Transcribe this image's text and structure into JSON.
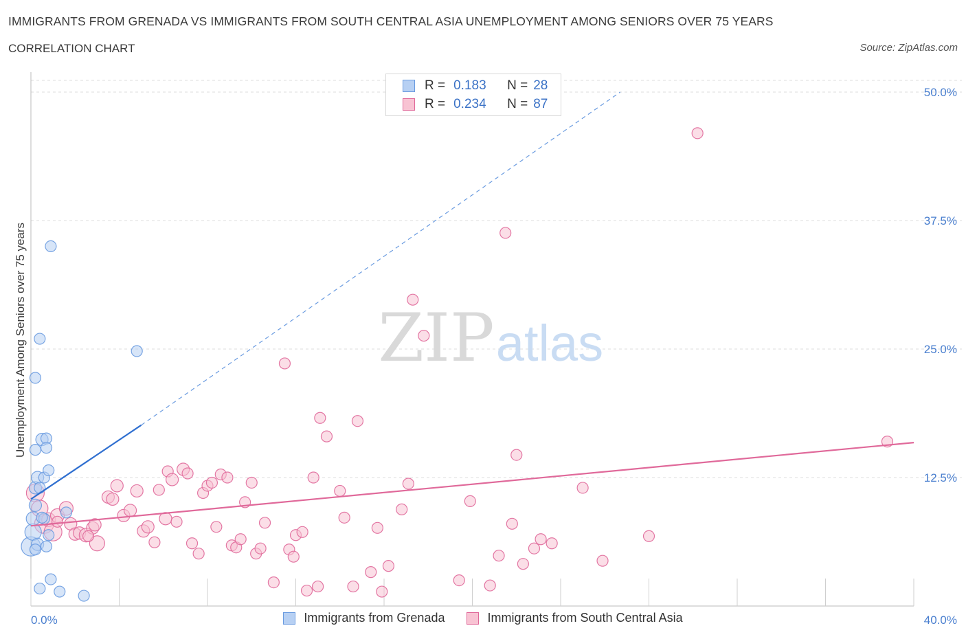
{
  "header": {
    "title": "IMMIGRANTS FROM GRENADA VS IMMIGRANTS FROM SOUTH CENTRAL ASIA UNEMPLOYMENT AMONG SENIORS OVER 75 YEARS",
    "subtitle": "CORRELATION CHART",
    "source": "Source: ZipAtlas.com"
  },
  "watermark": {
    "zip": "ZIP",
    "atlas": "atlas"
  },
  "stats_legend": {
    "rows": [
      {
        "r_label": "R =",
        "r_value": "0.183",
        "n_label": "N =",
        "n_value": "28",
        "color": "#a9c7f2"
      },
      {
        "r_label": "R =",
        "r_value": "0.234",
        "n_label": "N =",
        "n_value": "87",
        "color": "#f6b8cb"
      }
    ]
  },
  "chart_data": {
    "type": "scatter",
    "title": "IMMIGRANTS FROM GRENADA VS IMMIGRANTS FROM SOUTH CENTRAL ASIA UNEMPLOYMENT AMONG SENIORS OVER 75 YEARS",
    "xlabel": "",
    "ylabel": "Unemployment Among Seniors over 75 years",
    "xlim": [
      0,
      40
    ],
    "ylim": [
      0,
      50
    ],
    "x_tick_labels": [
      "0.0%",
      "40.0%"
    ],
    "y_ticks": [
      12.5,
      25.0,
      37.5,
      50.0
    ],
    "y_tick_labels": [
      "12.5%",
      "25.0%",
      "37.5%",
      "50.0%"
    ],
    "grid": true,
    "legend_position": "bottom",
    "series": [
      {
        "name": "Immigrants from Grenada",
        "color": "#6a9be0",
        "fill": "#b7d0f3",
        "trend": {
          "x0": 0.0,
          "y0": 10.4,
          "x1": 5.0,
          "y1": 17.6,
          "dashed_to_x": 26.7,
          "dashed_to_y": 50.0
        },
        "points": [
          [
            0.0,
            5.8,
            14
          ],
          [
            0.1,
            7.2,
            12
          ],
          [
            0.1,
            8.5,
            10
          ],
          [
            0.2,
            9.8,
            9
          ],
          [
            0.2,
            11.5,
            9
          ],
          [
            0.2,
            15.2,
            8
          ],
          [
            0.2,
            22.2,
            8
          ],
          [
            0.3,
            12.5,
            9
          ],
          [
            0.3,
            6.0,
            9
          ],
          [
            0.4,
            26.0,
            8
          ],
          [
            0.4,
            11.5,
            8
          ],
          [
            0.4,
            1.7,
            8
          ],
          [
            0.5,
            16.2,
            9
          ],
          [
            0.6,
            12.5,
            8
          ],
          [
            0.6,
            8.5,
            8
          ],
          [
            0.7,
            16.3,
            8
          ],
          [
            0.7,
            15.4,
            8
          ],
          [
            0.7,
            5.8,
            8
          ],
          [
            0.8,
            13.2,
            8
          ],
          [
            0.8,
            6.9,
            8
          ],
          [
            0.9,
            35.0,
            8
          ],
          [
            0.9,
            2.6,
            8
          ],
          [
            1.3,
            1.4,
            8
          ],
          [
            1.6,
            9.1,
            8
          ],
          [
            2.4,
            1.0,
            8
          ],
          [
            4.8,
            24.8,
            8
          ],
          [
            0.2,
            5.5,
            8
          ],
          [
            0.5,
            8.6,
            8
          ]
        ]
      },
      {
        "name": "Immigrants from South Central Asia",
        "color": "#e0699a",
        "fill": "#f8c3d3",
        "trend": {
          "x0": 0.0,
          "y0": 7.8,
          "x1": 40.0,
          "y1": 15.9
        },
        "points": [
          [
            0.2,
            11.0,
            13
          ],
          [
            0.4,
            9.5,
            12
          ],
          [
            0.6,
            8.0,
            14
          ],
          [
            0.8,
            8.4,
            10
          ],
          [
            1.0,
            7.2,
            13
          ],
          [
            1.2,
            8.8,
            10
          ],
          [
            1.6,
            9.5,
            10
          ],
          [
            1.8,
            8.0,
            9
          ],
          [
            2.0,
            7.0,
            9
          ],
          [
            2.2,
            7.1,
            9
          ],
          [
            2.5,
            6.9,
            10
          ],
          [
            2.8,
            7.6,
            9
          ],
          [
            2.9,
            7.9,
            9
          ],
          [
            3.0,
            6.1,
            11
          ],
          [
            3.5,
            10.6,
            9
          ],
          [
            3.7,
            10.4,
            9
          ],
          [
            3.9,
            11.7,
            9
          ],
          [
            4.2,
            8.8,
            9
          ],
          [
            4.5,
            9.3,
            9
          ],
          [
            4.8,
            11.2,
            9
          ],
          [
            5.1,
            7.3,
            9
          ],
          [
            5.3,
            7.7,
            9
          ],
          [
            5.6,
            6.2,
            8
          ],
          [
            5.8,
            11.3,
            8
          ],
          [
            6.1,
            8.5,
            9
          ],
          [
            6.2,
            13.1,
            8
          ],
          [
            6.4,
            12.3,
            9
          ],
          [
            6.6,
            8.2,
            8
          ],
          [
            6.9,
            13.3,
            9
          ],
          [
            7.1,
            12.9,
            8
          ],
          [
            7.3,
            6.1,
            8
          ],
          [
            7.6,
            5.1,
            8
          ],
          [
            7.8,
            11.0,
            8
          ],
          [
            8.0,
            11.7,
            8
          ],
          [
            8.2,
            12.0,
            8
          ],
          [
            8.4,
            7.7,
            8
          ],
          [
            8.6,
            12.8,
            8
          ],
          [
            8.9,
            12.5,
            8
          ],
          [
            9.1,
            5.9,
            8
          ],
          [
            9.3,
            5.7,
            8
          ],
          [
            9.5,
            6.5,
            8
          ],
          [
            9.7,
            10.1,
            8
          ],
          [
            10.0,
            12.0,
            8
          ],
          [
            10.2,
            5.1,
            8
          ],
          [
            10.4,
            5.6,
            8
          ],
          [
            10.6,
            8.1,
            8
          ],
          [
            11.0,
            2.3,
            8
          ],
          [
            11.5,
            23.6,
            8
          ],
          [
            11.7,
            5.5,
            8
          ],
          [
            11.9,
            4.8,
            8
          ],
          [
            12.0,
            6.9,
            8
          ],
          [
            12.3,
            7.2,
            8
          ],
          [
            12.5,
            1.5,
            8
          ],
          [
            12.8,
            12.5,
            8
          ],
          [
            13.0,
            1.9,
            8
          ],
          [
            13.1,
            18.3,
            8
          ],
          [
            13.4,
            16.5,
            8
          ],
          [
            14.0,
            11.2,
            8
          ],
          [
            14.2,
            8.6,
            8
          ],
          [
            14.6,
            1.9,
            8
          ],
          [
            14.8,
            18.0,
            8
          ],
          [
            15.4,
            3.3,
            8
          ],
          [
            15.7,
            7.6,
            8
          ],
          [
            15.9,
            1.4,
            8
          ],
          [
            16.2,
            3.9,
            8
          ],
          [
            16.8,
            9.4,
            8
          ],
          [
            17.1,
            11.9,
            8
          ],
          [
            17.3,
            29.8,
            8
          ],
          [
            17.8,
            26.3,
            8
          ],
          [
            19.4,
            2.5,
            8
          ],
          [
            19.9,
            10.2,
            8
          ],
          [
            20.8,
            2.0,
            8
          ],
          [
            21.2,
            4.9,
            8
          ],
          [
            21.5,
            36.3,
            8
          ],
          [
            21.8,
            8.0,
            8
          ],
          [
            22.0,
            14.7,
            8
          ],
          [
            22.3,
            4.1,
            8
          ],
          [
            22.8,
            5.6,
            8
          ],
          [
            23.1,
            6.5,
            8
          ],
          [
            23.6,
            6.1,
            8
          ],
          [
            25.0,
            11.5,
            8
          ],
          [
            25.9,
            4.4,
            8
          ],
          [
            28.0,
            6.8,
            8
          ],
          [
            30.2,
            46.0,
            8
          ],
          [
            38.8,
            16.0,
            8
          ],
          [
            1.2,
            8.2,
            8
          ],
          [
            2.6,
            6.8,
            8
          ]
        ]
      }
    ]
  },
  "bottom_legend": {
    "items": [
      {
        "label": "Immigrants from Grenada",
        "color": "#b7d0f3",
        "border": "#6a9be0"
      },
      {
        "label": "Immigrants from South Central Asia",
        "color": "#f8c3d3",
        "border": "#e0699a"
      }
    ]
  }
}
